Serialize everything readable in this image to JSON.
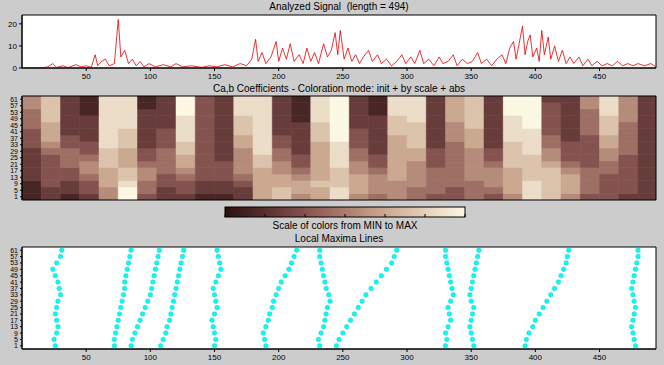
{
  "chart_data": [
    {
      "type": "line",
      "title": "Analyzed Signal  (length = 494)",
      "color": "#e00000",
      "x": [
        1,
        8,
        14,
        20,
        24,
        27,
        32,
        36,
        42,
        46,
        50,
        54,
        57,
        59,
        62,
        65,
        68,
        72,
        75,
        77,
        80,
        83,
        86,
        89,
        92,
        95,
        99,
        104,
        110,
        116,
        120,
        125,
        132,
        140,
        146,
        152,
        158,
        164,
        170,
        175,
        179,
        182,
        184,
        187,
        190,
        194,
        198,
        200,
        203,
        206,
        209,
        212,
        216,
        219,
        222,
        225,
        228,
        231,
        235,
        238,
        241,
        244,
        246,
        248,
        251,
        254,
        257,
        260,
        263,
        266,
        270,
        273,
        277,
        280,
        284,
        288,
        292,
        296,
        299,
        303,
        306,
        310,
        313,
        317,
        321,
        325,
        328,
        332,
        336,
        339,
        343,
        347,
        351,
        355,
        358,
        362,
        366,
        370,
        374,
        377,
        380,
        383,
        385,
        387,
        390,
        392,
        394,
        396,
        398,
        401,
        403,
        405,
        407,
        410,
        412,
        415,
        418,
        421,
        424,
        427,
        430,
        434,
        437,
        441,
        444,
        448,
        452,
        456,
        460,
        464,
        468,
        472,
        476,
        480,
        485,
        490,
        494
      ],
      "values": [
        0,
        0,
        0,
        0.5,
        2,
        0.3,
        1,
        0.2,
        1.5,
        0.5,
        1,
        0.3,
        6,
        1,
        3,
        4,
        1,
        2,
        22,
        5,
        8,
        2,
        4,
        1,
        3,
        0.5,
        2,
        0.5,
        1.5,
        0.5,
        2,
        0.5,
        1,
        0.3,
        1,
        0.5,
        1.5,
        0.5,
        2,
        1,
        4,
        13,
        3,
        7,
        2,
        5,
        12,
        3,
        9,
        4,
        11,
        3,
        6,
        2,
        9,
        3,
        7,
        2,
        11,
        5,
        8,
        16,
        6,
        17,
        4,
        9,
        3,
        6,
        2,
        5,
        8,
        3,
        6,
        2,
        4,
        1,
        3,
        6,
        2,
        5,
        2,
        8,
        2,
        4,
        1,
        5,
        2,
        3,
        6,
        1,
        4,
        2,
        3,
        7,
        2,
        4,
        1,
        4,
        6,
        2,
        9,
        12,
        4,
        10,
        19,
        6,
        12,
        15,
        5,
        9,
        3,
        17,
        6,
        14,
        4,
        10,
        3,
        8,
        2,
        5,
        2,
        5,
        1,
        4,
        1,
        3,
        1,
        2,
        1,
        3,
        1,
        2,
        1,
        2,
        1,
        2,
        0.5
      ],
      "xlim": [
        0,
        494
      ],
      "xticks": [
        50,
        100,
        150,
        200,
        250,
        300,
        350,
        400,
        450
      ],
      "ylim": [
        0,
        24
      ],
      "yticks": [
        0,
        10,
        20
      ]
    },
    {
      "type": "heatmap",
      "title": "Ca,b Coefficients - Coloration mode: init + by scale + abs",
      "x_edges": [
        0,
        15,
        30,
        45,
        60,
        75,
        90,
        105,
        120,
        135,
        150,
        165,
        180,
        195,
        210,
        225,
        240,
        255,
        270,
        285,
        300,
        315,
        330,
        345,
        360,
        375,
        390,
        405,
        420,
        435,
        450,
        465,
        480,
        494
      ],
      "y_edges": [
        -1,
        3,
        7,
        11,
        15,
        19,
        23,
        27,
        31,
        35,
        39,
        43,
        47,
        51,
        55,
        59,
        63
      ],
      "values": [
        [
          1,
          2,
          1,
          2,
          5,
          9,
          3,
          2,
          2,
          1,
          1,
          2,
          6,
          7,
          5,
          6,
          8,
          5,
          4,
          5,
          4,
          3,
          3,
          4,
          3,
          5,
          8,
          7,
          5,
          3,
          3,
          2,
          2
        ],
        [
          1,
          2,
          2,
          3,
          5,
          9,
          4,
          2,
          3,
          2,
          2,
          2,
          6,
          7,
          6,
          6,
          8,
          6,
          5,
          5,
          4,
          4,
          3,
          4,
          4,
          6,
          8,
          7,
          6,
          4,
          3,
          3,
          2
        ],
        [
          1,
          3,
          2,
          3,
          6,
          8,
          4,
          3,
          3,
          2,
          2,
          3,
          6,
          6,
          6,
          7,
          7,
          6,
          5,
          5,
          5,
          4,
          4,
          4,
          5,
          6,
          8,
          7,
          6,
          4,
          3,
          3,
          2
        ],
        [
          2,
          3,
          3,
          4,
          6,
          7,
          5,
          3,
          4,
          3,
          3,
          4,
          6,
          6,
          5,
          6,
          7,
          6,
          5,
          6,
          5,
          4,
          4,
          5,
          5,
          6,
          7,
          7,
          6,
          4,
          3,
          3,
          2
        ],
        [
          2,
          3,
          3,
          5,
          6,
          7,
          5,
          4,
          5,
          3,
          3,
          5,
          6,
          5,
          4,
          6,
          7,
          5,
          4,
          6,
          5,
          4,
          4,
          5,
          5,
          6,
          7,
          7,
          5,
          4,
          4,
          3,
          2
        ],
        [
          2,
          3,
          4,
          5,
          7,
          6,
          4,
          4,
          6,
          3,
          3,
          5,
          7,
          5,
          3,
          6,
          8,
          5,
          3,
          6,
          5,
          3,
          4,
          5,
          4,
          7,
          7,
          6,
          4,
          3,
          4,
          3,
          2
        ],
        [
          2,
          3,
          4,
          4,
          7,
          6,
          3,
          4,
          6,
          3,
          2,
          5,
          7,
          4,
          3,
          6,
          8,
          4,
          3,
          6,
          6,
          3,
          4,
          5,
          3,
          7,
          7,
          5,
          3,
          3,
          5,
          3,
          2
        ],
        [
          2,
          4,
          4,
          3,
          7,
          6,
          3,
          4,
          7,
          3,
          2,
          5,
          8,
          4,
          2,
          6,
          8,
          4,
          2,
          6,
          6,
          3,
          4,
          5,
          3,
          7,
          8,
          5,
          3,
          3,
          5,
          4,
          2
        ],
        [
          3,
          5,
          3,
          3,
          8,
          7,
          2,
          3,
          7,
          3,
          2,
          6,
          8,
          3,
          2,
          6,
          8,
          3,
          2,
          6,
          7,
          2,
          4,
          6,
          2,
          7,
          8,
          4,
          3,
          3,
          6,
          4,
          2
        ],
        [
          3,
          6,
          3,
          2,
          8,
          7,
          2,
          3,
          8,
          3,
          2,
          6,
          8,
          3,
          2,
          7,
          9,
          3,
          2,
          6,
          7,
          2,
          5,
          6,
          2,
          8,
          8,
          4,
          2,
          3,
          6,
          4,
          2
        ],
        [
          3,
          6,
          2,
          2,
          8,
          7,
          2,
          3,
          8,
          3,
          2,
          7,
          8,
          2,
          2,
          7,
          9,
          3,
          2,
          7,
          7,
          2,
          5,
          6,
          2,
          8,
          8,
          3,
          2,
          4,
          7,
          4,
          2
        ],
        [
          4,
          6,
          2,
          2,
          8,
          8,
          2,
          2,
          8,
          3,
          2,
          7,
          8,
          2,
          2,
          7,
          9,
          2,
          2,
          7,
          7,
          2,
          5,
          7,
          2,
          8,
          9,
          3,
          2,
          4,
          7,
          4,
          2
        ],
        [
          4,
          7,
          2,
          2,
          8,
          8,
          2,
          2,
          8,
          3,
          2,
          7,
          8,
          2,
          1,
          8,
          9,
          2,
          2,
          7,
          8,
          2,
          6,
          7,
          2,
          8,
          9,
          3,
          2,
          4,
          7,
          5,
          2
        ],
        [
          4,
          7,
          2,
          1,
          8,
          8,
          2,
          2,
          9,
          3,
          2,
          8,
          8,
          2,
          1,
          8,
          9,
          2,
          1,
          8,
          8,
          2,
          6,
          7,
          2,
          9,
          9,
          3,
          2,
          4,
          8,
          5,
          2
        ],
        [
          5,
          7,
          2,
          1,
          8,
          8,
          1,
          2,
          9,
          3,
          2,
          8,
          8,
          2,
          1,
          8,
          9,
          2,
          1,
          8,
          8,
          2,
          6,
          7,
          2,
          9,
          9,
          3,
          2,
          5,
          8,
          5,
          2
        ],
        [
          5,
          7,
          2,
          1,
          8,
          8,
          1,
          2,
          9,
          3,
          2,
          8,
          8,
          2,
          1,
          8,
          9,
          2,
          1,
          8,
          8,
          2,
          6,
          7,
          2,
          9,
          9,
          2,
          2,
          5,
          8,
          5,
          2
        ]
      ],
      "xlim": [
        0,
        494
      ],
      "ylim": [
        -1,
        63
      ],
      "yticks": [
        1,
        5,
        9,
        13,
        17,
        21,
        25,
        29,
        33,
        37,
        41,
        45,
        49,
        53,
        57,
        61
      ],
      "tick_labels": "y",
      "colorbar": {
        "label": "Scale of colors from MIN to MAX",
        "range": [
          0,
          9
        ]
      }
    },
    {
      "type": "scatter",
      "title": "Local Maxima Lines",
      "color": "#00ffff",
      "marker": "circle",
      "x": [
        26,
        25,
        27,
        28,
        27,
        26,
        27,
        28,
        30,
        29,
        28,
        26,
        24,
        27,
        30,
        31,
        72,
        72,
        73,
        74,
        75,
        76,
        77,
        78,
        79,
        80,
        80,
        81,
        82,
        83,
        84,
        85,
        85,
        86,
        88,
        90,
        92,
        94,
        96,
        98,
        100,
        101,
        102,
        103,
        104,
        105,
        106,
        107,
        108,
        110,
        112,
        113,
        115,
        116,
        117,
        118,
        119,
        120,
        121,
        122,
        123,
        124,
        125,
        126,
        150,
        151,
        150,
        149,
        148,
        150,
        152,
        151,
        150,
        149,
        151,
        153,
        155,
        154,
        153,
        152,
        190,
        189,
        188,
        190,
        192,
        193,
        195,
        196,
        198,
        200,
        202,
        205,
        208,
        210,
        212,
        214,
        232,
        231,
        233,
        235,
        236,
        237,
        238,
        240,
        239,
        237,
        236,
        235,
        234,
        233,
        232,
        232,
        245,
        247,
        250,
        253,
        256,
        259,
        262,
        265,
        268,
        272,
        276,
        280,
        284,
        288,
        290,
        292,
        330,
        331,
        330,
        332,
        334,
        333,
        332,
        334,
        336,
        335,
        334,
        333,
        332,
        331,
        330,
        330,
        352,
        351,
        350,
        349,
        350,
        351,
        352,
        350,
        349,
        350,
        351,
        352,
        353,
        354,
        355,
        356,
        392,
        393,
        395,
        398,
        400,
        403,
        406,
        409,
        412,
        415,
        418,
        420,
        422,
        424,
        425,
        426,
        478,
        477,
        476,
        475,
        476,
        477,
        478,
        477,
        476,
        475,
        476,
        477,
        478,
        479,
        480,
        480
      ],
      "y": [
        1,
        5,
        9,
        13,
        17,
        21,
        25,
        29,
        33,
        37,
        41,
        45,
        49,
        53,
        57,
        61,
        1,
        5,
        9,
        13,
        17,
        21,
        25,
        29,
        33,
        37,
        41,
        45,
        49,
        53,
        57,
        61,
        1,
        5,
        9,
        13,
        17,
        21,
        25,
        29,
        33,
        37,
        41,
        45,
        49,
        53,
        57,
        61,
        1,
        5,
        9,
        13,
        17,
        21,
        25,
        29,
        33,
        37,
        41,
        45,
        49,
        53,
        57,
        61,
        1,
        5,
        9,
        13,
        17,
        21,
        25,
        29,
        33,
        37,
        41,
        45,
        49,
        53,
        57,
        61,
        1,
        5,
        9,
        13,
        17,
        21,
        25,
        29,
        33,
        37,
        41,
        45,
        49,
        53,
        57,
        61,
        1,
        5,
        9,
        13,
        17,
        21,
        25,
        29,
        33,
        37,
        41,
        45,
        49,
        53,
        57,
        61,
        1,
        5,
        9,
        13,
        17,
        21,
        25,
        29,
        33,
        37,
        41,
        45,
        49,
        53,
        57,
        61,
        1,
        5,
        9,
        13,
        17,
        21,
        25,
        29,
        33,
        37,
        41,
        45,
        49,
        53,
        57,
        61,
        1,
        5,
        9,
        13,
        17,
        21,
        25,
        29,
        33,
        37,
        41,
        45,
        49,
        53,
        57,
        61,
        1,
        5,
        9,
        13,
        17,
        21,
        25,
        29,
        33,
        37,
        41,
        45,
        49,
        53,
        57,
        61,
        1,
        5,
        9,
        13,
        17,
        21,
        25,
        29,
        33,
        37,
        41,
        45,
        49,
        53,
        57,
        61
      ],
      "xlim": [
        0,
        494
      ],
      "xticks": [
        50,
        100,
        150,
        200,
        250,
        300,
        350,
        400,
        450
      ],
      "ylim": [
        -1,
        63
      ],
      "yticks": [
        1,
        5,
        9,
        13,
        17,
        21,
        25,
        29,
        33,
        37,
        41,
        45,
        49,
        53,
        57,
        61
      ]
    }
  ]
}
